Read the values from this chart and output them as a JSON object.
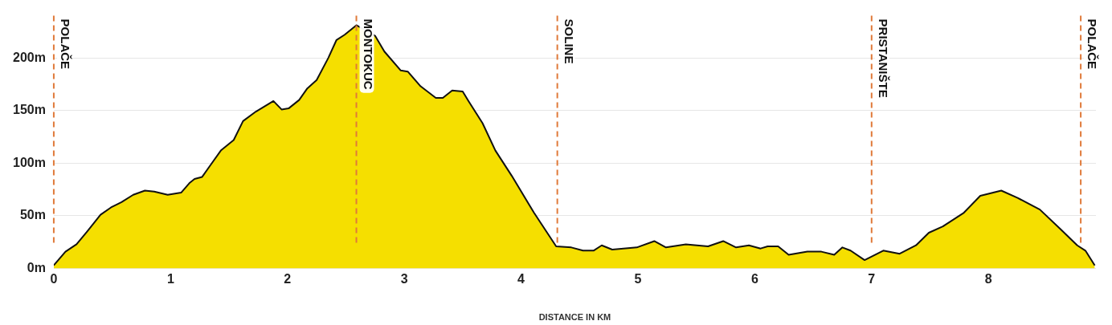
{
  "chart_data": {
    "type": "area",
    "xlabel": "DISTANCE IN KM",
    "x": [
      0,
      0.1,
      0.195,
      0.285,
      0.4,
      0.49,
      0.58,
      0.68,
      0.78,
      0.86,
      0.975,
      1.09,
      1.16,
      1.205,
      1.27,
      1.34,
      1.43,
      1.54,
      1.62,
      1.73,
      1.88,
      1.95,
      2.01,
      2.1,
      2.17,
      2.25,
      2.35,
      2.42,
      2.49,
      2.59,
      2.75,
      2.83,
      2.97,
      3.03,
      3.14,
      3.27,
      3.33,
      3.41,
      3.5,
      3.55,
      3.67,
      3.78,
      3.92,
      4.11,
      4.3,
      4.43,
      4.53,
      4.62,
      4.69,
      4.78,
      4.99,
      5.14,
      5.24,
      5.41,
      5.6,
      5.73,
      5.84,
      5.95,
      6.05,
      6.11,
      6.2,
      6.29,
      6.45,
      6.57,
      6.68,
      6.75,
      6.82,
      6.94,
      7.1,
      7.24,
      7.38,
      7.49,
      7.61,
      7.79,
      7.93,
      8.11,
      8.25,
      8.44,
      8.62,
      8.76,
      8.83,
      8.91
    ],
    "series": [
      {
        "color": "#f5df00",
        "values": [
          3,
          16,
          23,
          35,
          51,
          58,
          63,
          70,
          74,
          73,
          70,
          72,
          81,
          85,
          87,
          98,
          112,
          122,
          140,
          149,
          159,
          151,
          152,
          160,
          171,
          179,
          200,
          217,
          222,
          231,
          221,
          206,
          188,
          187,
          173,
          162,
          162,
          169,
          168,
          159,
          138,
          112,
          88,
          53,
          21,
          20,
          17,
          17,
          22,
          18,
          20,
          26,
          20,
          23,
          21,
          26,
          20,
          22,
          19,
          21,
          21,
          13,
          16,
          16,
          13,
          20,
          17,
          8,
          17,
          14,
          22,
          34,
          40,
          53,
          69,
          74,
          67,
          56,
          37,
          22,
          17,
          3
        ]
      }
    ],
    "xlim": [
      0,
      8.92
    ],
    "ylim": [
      0,
      240
    ],
    "xticks": [
      0,
      1,
      2,
      3,
      4,
      5,
      6,
      7,
      8
    ],
    "yticks": [
      {
        "value": 0,
        "label": "0m"
      },
      {
        "value": 50,
        "label": "50m"
      },
      {
        "value": 100,
        "label": "100m"
      },
      {
        "value": 150,
        "label": "150m"
      },
      {
        "value": 200,
        "label": "200m"
      }
    ],
    "grid": "y",
    "ref_lines": [
      {
        "axis": "x",
        "value": 0,
        "label": "POLAČE",
        "color": "#e07a3a",
        "line_style": "dashed"
      },
      {
        "axis": "x",
        "value": 2.59,
        "label": "MONTOKUC",
        "color": "#e07a3a",
        "line_style": "dashed"
      },
      {
        "axis": "x",
        "value": 4.31,
        "label": "SOLINE",
        "color": "#e07a3a",
        "line_style": "dashed"
      },
      {
        "axis": "x",
        "value": 7.0,
        "label": "PRISTANIŠTE",
        "color": "#e07a3a",
        "line_style": "dashed"
      },
      {
        "axis": "x",
        "value": 8.79,
        "label": "POLAČE",
        "color": "#e07a3a",
        "line_style": "dashed"
      }
    ]
  }
}
